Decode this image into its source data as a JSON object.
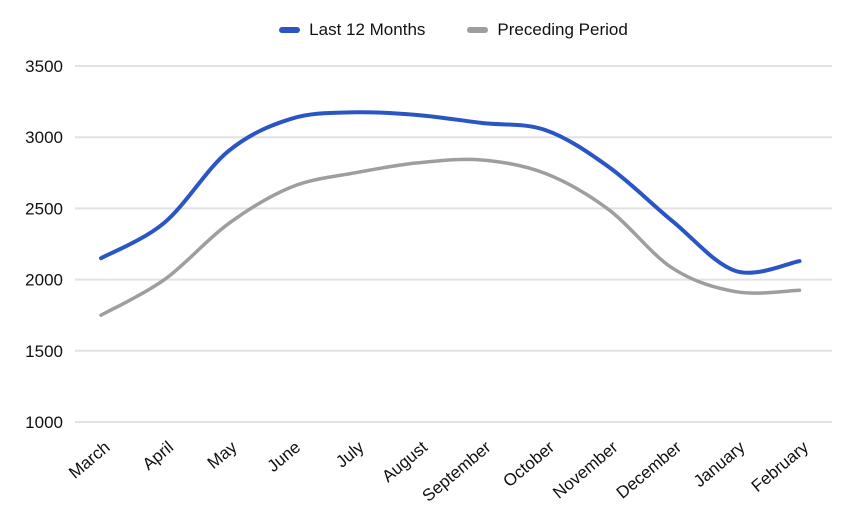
{
  "chart_data": {
    "type": "line",
    "title": "",
    "smooth": true,
    "grid": true,
    "legend_position": "top",
    "categories": [
      "March",
      "April",
      "May",
      "June",
      "July",
      "August",
      "September",
      "October",
      "November",
      "December",
      "January",
      "February"
    ],
    "series": [
      {
        "name": "Last 12 Months",
        "color": "#2a56c5",
        "values": [
          2150,
          2400,
          2900,
          3130,
          3175,
          3155,
          3100,
          3050,
          2790,
          2410,
          2060,
          2130
        ]
      },
      {
        "name": "Preceding Period",
        "color": "#9e9e9e",
        "values": [
          1750,
          2000,
          2390,
          2650,
          2750,
          2820,
          2840,
          2745,
          2490,
          2080,
          1915,
          1925
        ]
      }
    ],
    "xlabel": "",
    "ylabel": "",
    "ylim": [
      1000,
      3500
    ],
    "yticks": [
      1000,
      1500,
      2000,
      2500,
      3000,
      3500
    ],
    "grid_color": "#e2e2e2",
    "text_color": "#111111"
  }
}
